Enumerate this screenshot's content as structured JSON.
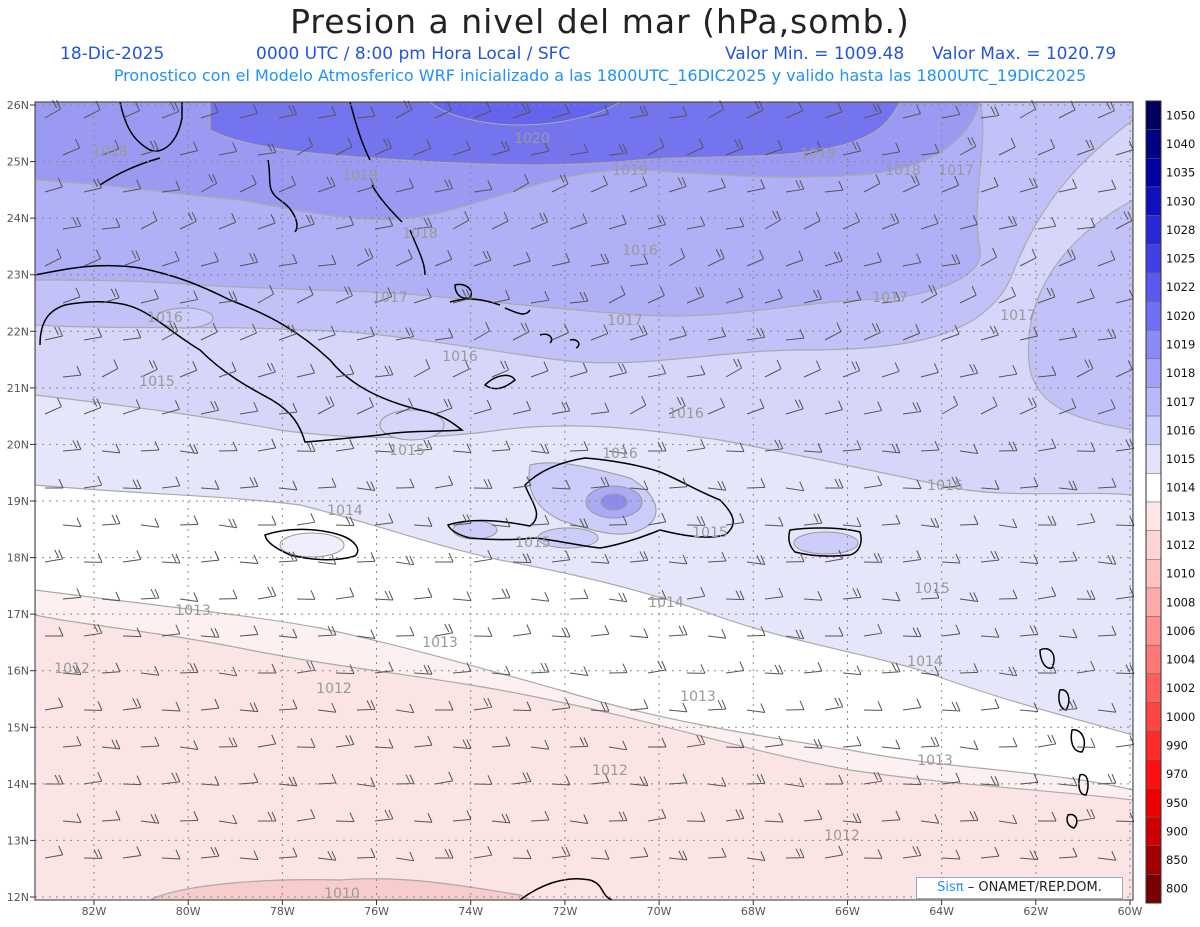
{
  "header": {
    "title": "Presion a nivel del mar (hPa,somb.)",
    "date": "18-Dic-2025",
    "time_info": "0000 UTC / 8:00 pm Hora Local / SFC",
    "min_label": "Valor Min. = 1009.48",
    "max_label": "Valor Max. = 1020.79",
    "model_info": "Pronostico con el Modelo Atmosferico WRF inicializado a las 1800UTC_16DIC2025 y valido hasta las  1800UTC_19DIC2025"
  },
  "axes": {
    "lat_labels": [
      "26N",
      "25N",
      "24N",
      "23N",
      "22N",
      "21N",
      "20N",
      "19N",
      "18N",
      "17N",
      "16N",
      "15N",
      "14N",
      "13N",
      "12N"
    ],
    "lon_labels": [
      "82W",
      "80W",
      "78W",
      "76W",
      "74W",
      "72W",
      "70W",
      "68W",
      "66W",
      "64W",
      "62W",
      "60W"
    ]
  },
  "contour_labels": [
    "1020",
    "1019",
    "1019",
    "1019",
    "1018",
    "1017",
    "1018",
    "1018",
    "1016",
    "1017",
    "1017",
    "1017",
    "1017",
    "1016",
    "1016",
    "1015",
    "1016",
    "1015",
    "1016",
    "1016",
    "1014",
    "1015",
    "1015",
    "1014",
    "1013",
    "1015",
    "1013",
    "1014",
    "1012",
    "1012",
    "1013",
    "1012",
    "1013",
    "1012",
    "1010"
  ],
  "colorbar": {
    "levels": [
      "1050",
      "1040",
      "1035",
      "1030",
      "1028",
      "1025",
      "1022",
      "1020",
      "1019",
      "1018",
      "1017",
      "1016",
      "1015",
      "1014",
      "1013",
      "1012",
      "1010",
      "1008",
      "1006",
      "1004",
      "1002",
      "1000",
      "990",
      "970",
      "950",
      "900",
      "850",
      "800"
    ],
    "colors": [
      "#00005f",
      "#000080",
      "#0000a0",
      "#1010c0",
      "#2828d8",
      "#4040e6",
      "#5a5af0",
      "#7070f4",
      "#8a8af6",
      "#a2a2f8",
      "#b8b8fa",
      "#cdcdfb",
      "#e2e2fd",
      "#ffffff",
      "#ffe6e6",
      "#ffd4d4",
      "#ffc2c2",
      "#ffaaaa",
      "#ff9090",
      "#ff7777",
      "#ff5e5e",
      "#ff4444",
      "#ff2a2a",
      "#ff1010",
      "#ee0000",
      "#cc0000",
      "#a00000",
      "#780000"
    ]
  },
  "credit": {
    "logo": "Sisπ",
    "text": "– ONAMET/REP.DOM."
  },
  "colors": {
    "title": "#222222",
    "subtitle": "#2255dd",
    "model_info": "#1e90ff",
    "contour_line": "#999999"
  }
}
